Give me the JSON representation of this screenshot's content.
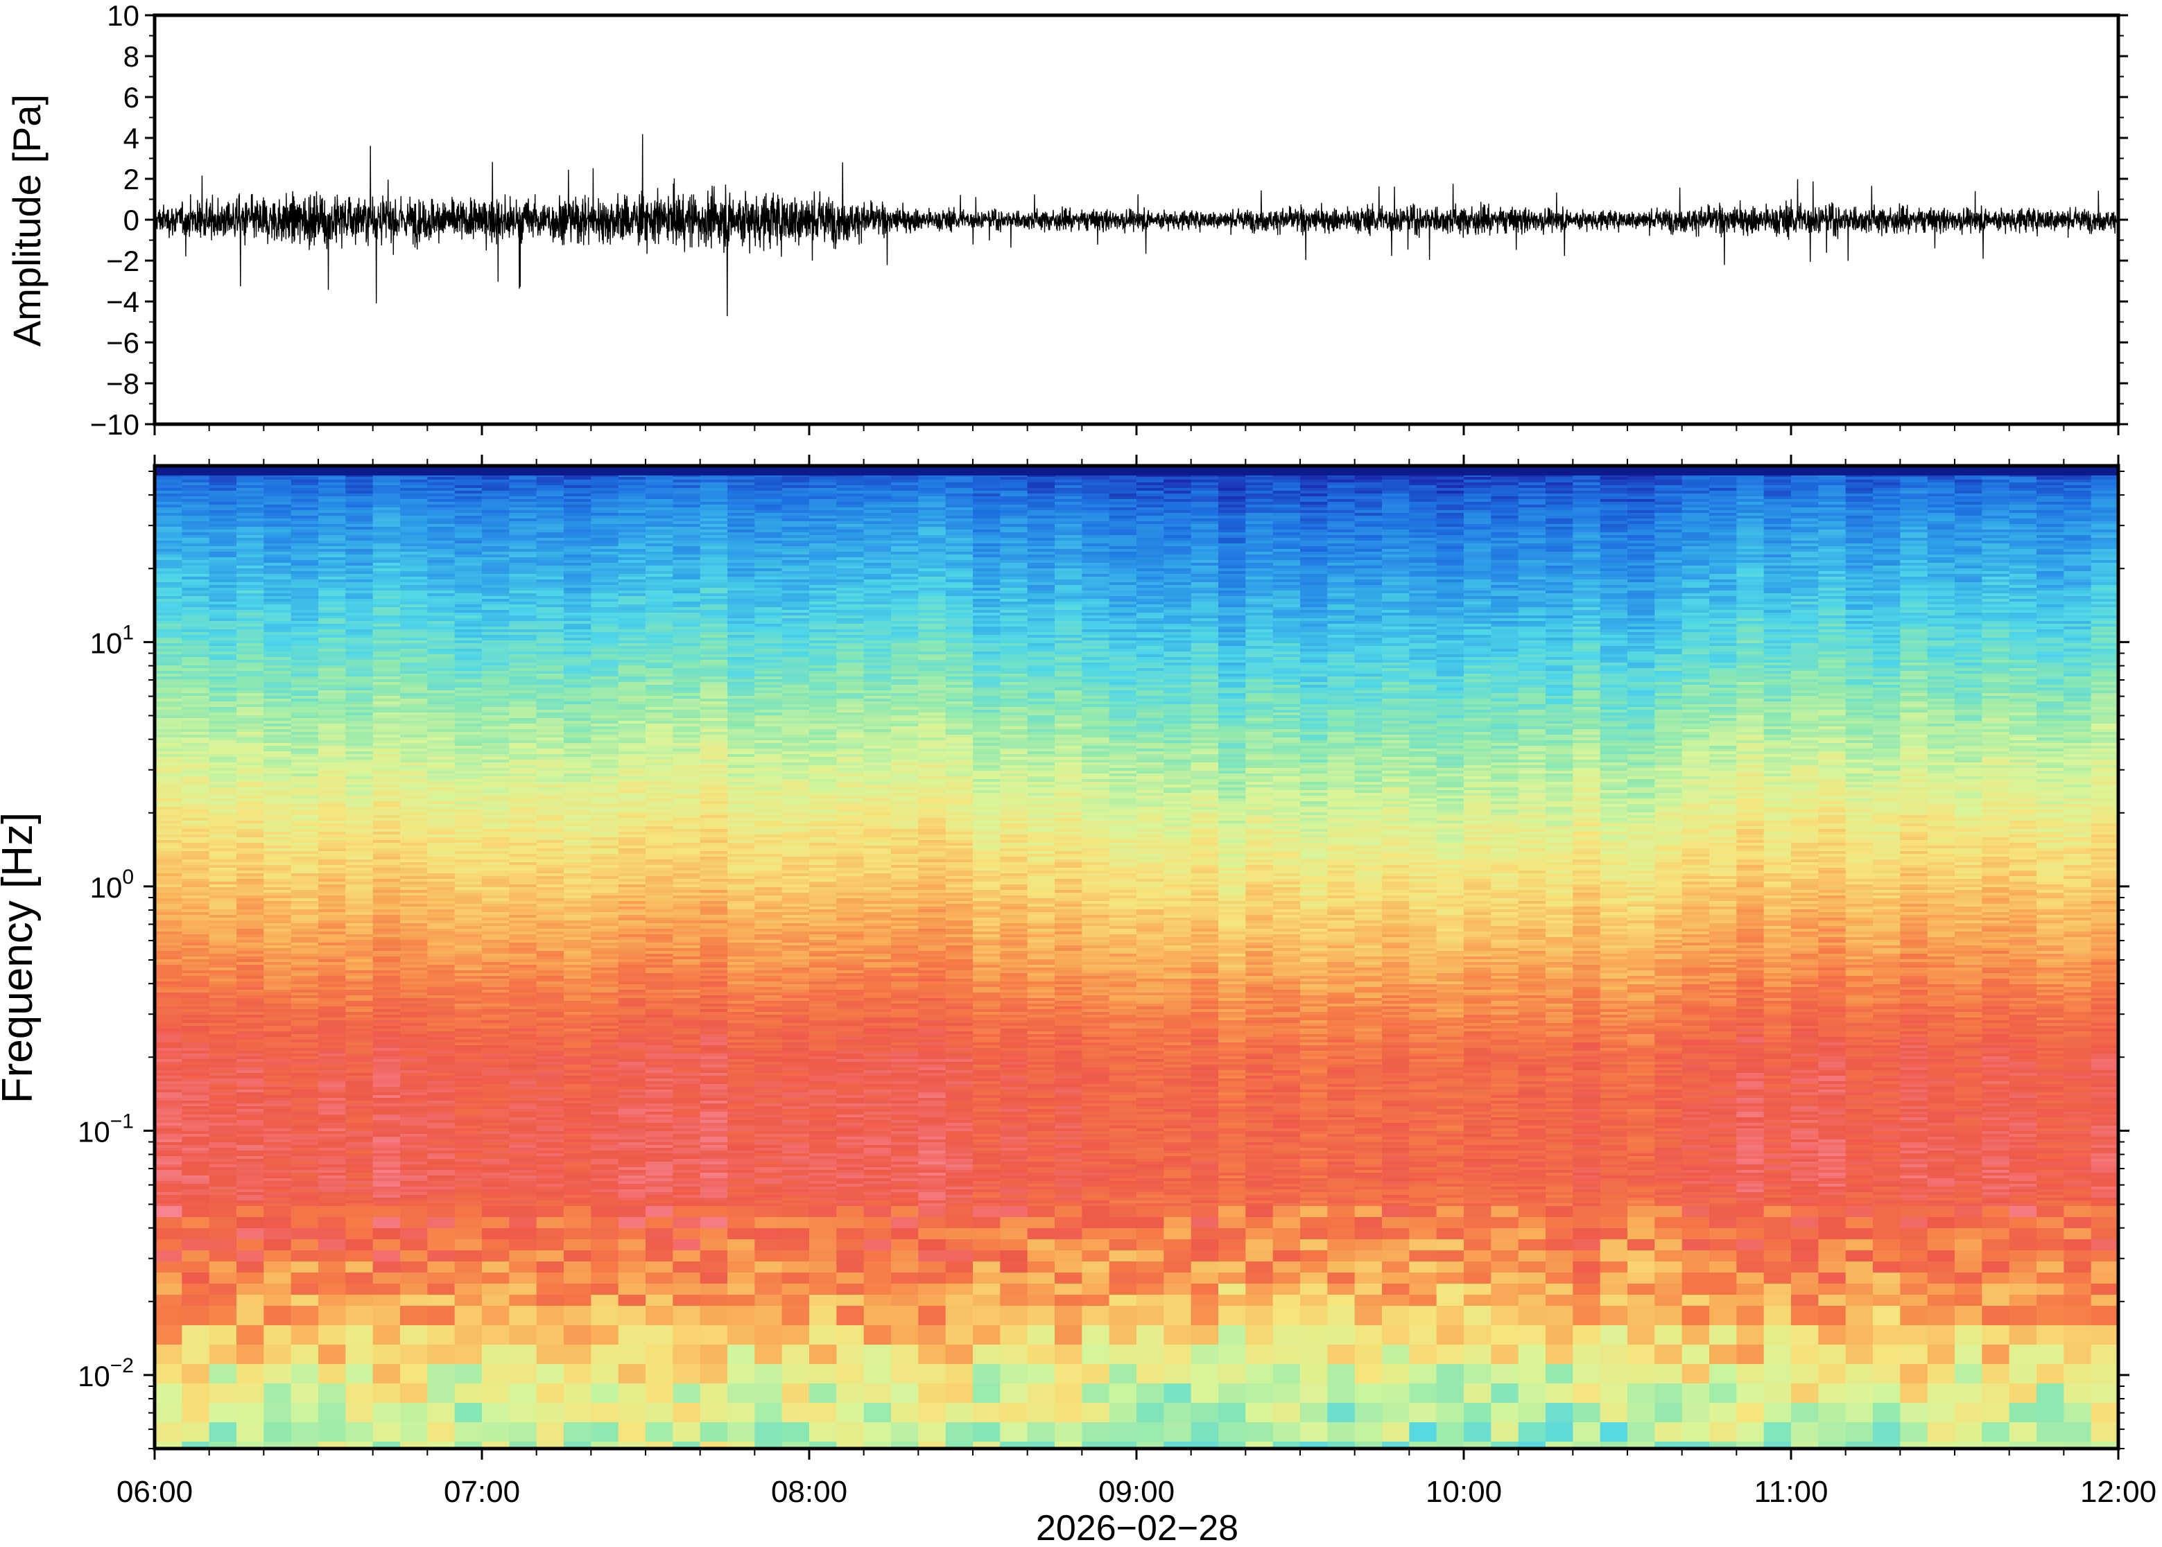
{
  "chart_data": [
    {
      "type": "line",
      "title": "",
      "ylabel": "Amplitude [Pa]",
      "xlabel": "",
      "ylim": [
        -10,
        10
      ],
      "y_ticks": [
        10,
        8,
        6,
        4,
        2,
        0,
        -2,
        -4,
        -6,
        -8,
        -10
      ],
      "y_tick_labels": [
        "10",
        "8",
        "6",
        "4",
        "2",
        "0",
        "−2",
        "−4",
        "−6",
        "−8",
        "−10"
      ],
      "x_range": [
        "06:00",
        "12:00"
      ],
      "series": [
        {
          "color": "#000000",
          "description_of_values": "waveform envelope: hour offset from 06:00 and approximate peak amplitude [Pa]",
          "envelope": [
            [
              0.0,
              1.3
            ],
            [
              0.25,
              2.0
            ],
            [
              0.5,
              2.5
            ],
            [
              0.75,
              2.2
            ],
            [
              1.0,
              2.0
            ],
            [
              1.25,
              2.2
            ],
            [
              1.5,
              2.4
            ],
            [
              1.75,
              2.8
            ],
            [
              2.0,
              2.6
            ],
            [
              2.25,
              1.3
            ],
            [
              2.5,
              0.9
            ],
            [
              2.75,
              1.0
            ],
            [
              3.0,
              1.0
            ],
            [
              3.25,
              0.9
            ],
            [
              3.5,
              1.2
            ],
            [
              3.75,
              1.3
            ],
            [
              4.0,
              1.4
            ],
            [
              4.25,
              1.1
            ],
            [
              4.5,
              0.9
            ],
            [
              4.75,
              1.3
            ],
            [
              5.0,
              1.6
            ],
            [
              5.25,
              1.3
            ],
            [
              5.5,
              1.1
            ],
            [
              5.75,
              1.2
            ],
            [
              6.0,
              1.0
            ]
          ]
        }
      ]
    },
    {
      "type": "heatmap",
      "title": "",
      "ylabel": "Frequency [Hz]",
      "xlabel": "2026−02−28",
      "y_scale": "log",
      "ylim": [
        0.005,
        50
      ],
      "y_tick_labels": [
        {
          "base": "10",
          "exp": "1",
          "value": 10
        },
        {
          "base": "10",
          "exp": "0",
          "value": 1
        },
        {
          "base": "10",
          "exp": "−1",
          "value": 0.1
        },
        {
          "base": "10",
          "exp": "−2",
          "value": 0.01
        }
      ],
      "x_tick_labels": [
        "06:00",
        "07:00",
        "08:00",
        "09:00",
        "10:00",
        "11:00",
        "12:00"
      ],
      "colormap": [
        "#1a2bb0",
        "#1e6fe0",
        "#2f9fe8",
        "#4fd6e8",
        "#8ee8b0",
        "#d8f59a",
        "#f7e27a",
        "#f9b35a",
        "#f57a48",
        "#ee5a4a",
        "#f6838f"
      ],
      "description": "relative power: high (red) at 0.05–0.5 Hz, decreasing toward blue above 10 Hz; lower power between 08:30 and 10:40"
    }
  ]
}
